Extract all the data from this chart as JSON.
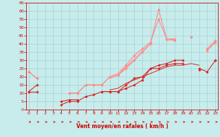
{
  "x": [
    0,
    1,
    2,
    3,
    4,
    5,
    6,
    7,
    8,
    9,
    10,
    11,
    12,
    13,
    14,
    15,
    16,
    17,
    18,
    19,
    20,
    21,
    22,
    23
  ],
  "series": [
    {
      "color": "#dd2222",
      "alpha": 1.0,
      "linewidth": 0.8,
      "marker": "D",
      "markersize": 1.8,
      "y": [
        11,
        15,
        null,
        null,
        5,
        6,
        6,
        null,
        null,
        11,
        11,
        11,
        15,
        19,
        20,
        25,
        27,
        28,
        30,
        30,
        null,
        24,
        null,
        30
      ]
    },
    {
      "color": "#dd2222",
      "alpha": 1.0,
      "linewidth": 0.8,
      "marker": "D",
      "markersize": 1.8,
      "y": [
        11,
        11,
        null,
        null,
        3,
        5,
        5,
        8,
        9,
        11,
        11,
        11,
        13,
        15,
        18,
        25,
        25,
        27,
        28,
        28,
        null,
        25,
        23,
        30
      ]
    },
    {
      "color": "#dd2222",
      "alpha": 1.0,
      "linewidth": 0.7,
      "marker": null,
      "markersize": 0,
      "y": [
        11,
        null,
        null,
        null,
        null,
        null,
        null,
        null,
        null,
        null,
        12,
        13,
        16,
        18,
        20,
        22,
        24,
        26,
        27,
        27,
        28,
        27,
        null,
        null
      ]
    },
    {
      "color": "#ff8888",
      "alpha": 1.0,
      "linewidth": 0.8,
      "marker": "D",
      "markersize": 1.8,
      "y": [
        23,
        19,
        null,
        null,
        null,
        10,
        10,
        15,
        15,
        15,
        20,
        21,
        25,
        30,
        35,
        40,
        61,
        43,
        42,
        null,
        44,
        null,
        36,
        41
      ]
    },
    {
      "color": "#ff8888",
      "alpha": 1.0,
      "linewidth": 0.8,
      "marker": "D",
      "markersize": 1.8,
      "y": [
        23,
        19,
        null,
        null,
        null,
        10,
        10,
        15,
        15,
        15,
        20,
        22,
        27,
        33,
        37,
        41,
        55,
        43,
        43,
        null,
        44,
        null,
        37,
        42
      ]
    },
    {
      "color": "#ffaaaa",
      "alpha": 1.0,
      "linewidth": 0.7,
      "marker": null,
      "markersize": 0,
      "y": [
        23,
        null,
        null,
        null,
        null,
        null,
        null,
        null,
        null,
        null,
        20,
        22,
        26,
        31,
        36,
        40,
        null,
        43,
        43,
        null,
        44,
        null,
        null,
        null
      ]
    },
    {
      "color": "#ff8888",
      "alpha": 1.0,
      "linewidth": 0.7,
      "marker": null,
      "markersize": 0,
      "y": [
        null,
        null,
        null,
        null,
        null,
        null,
        null,
        null,
        null,
        null,
        19,
        21,
        26,
        30,
        35,
        40,
        null,
        42,
        43,
        null,
        44,
        null,
        36,
        41
      ]
    }
  ],
  "xlabel": "Vent moyen/en rafales ( km/h )",
  "xlim": [
    -0.3,
    23.3
  ],
  "ylim": [
    0,
    65
  ],
  "yticks": [
    0,
    5,
    10,
    15,
    20,
    25,
    30,
    35,
    40,
    45,
    50,
    55,
    60,
    65
  ],
  "xticks": [
    0,
    1,
    2,
    3,
    4,
    5,
    6,
    7,
    8,
    9,
    10,
    11,
    12,
    13,
    14,
    15,
    16,
    17,
    18,
    19,
    20,
    21,
    22,
    23
  ],
  "bg_color": "#c8ecec",
  "grid_color": "#99cccc",
  "tick_color": "#cc0000",
  "label_color": "#cc0000",
  "arrow_color": "#cc0000",
  "spine_color": "#cc0000"
}
